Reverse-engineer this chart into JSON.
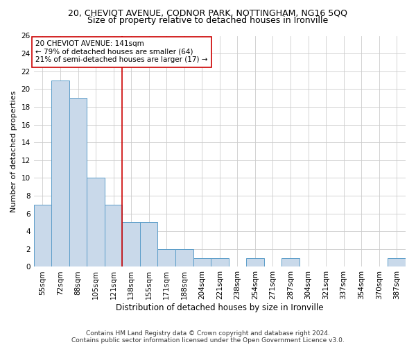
{
  "title_line1": "20, CHEVIOT AVENUE, CODNOR PARK, NOTTINGHAM, NG16 5QQ",
  "title_line2": "Size of property relative to detached houses in Ironville",
  "xlabel": "Distribution of detached houses by size in Ironville",
  "ylabel": "Number of detached properties",
  "categories": [
    "55sqm",
    "72sqm",
    "88sqm",
    "105sqm",
    "121sqm",
    "138sqm",
    "155sqm",
    "171sqm",
    "188sqm",
    "204sqm",
    "221sqm",
    "238sqm",
    "254sqm",
    "271sqm",
    "287sqm",
    "304sqm",
    "321sqm",
    "337sqm",
    "354sqm",
    "370sqm",
    "387sqm"
  ],
  "values": [
    7,
    21,
    19,
    10,
    7,
    5,
    5,
    2,
    2,
    1,
    1,
    0,
    1,
    0,
    1,
    0,
    0,
    0,
    0,
    0,
    1
  ],
  "bar_color": "#c9d9ea",
  "bar_edgecolor": "#5b9dc9",
  "annotation_box_text": "20 CHEVIOT AVENUE: 141sqm\n← 79% of detached houses are smaller (64)\n21% of semi-detached houses are larger (17) →",
  "annotation_box_color": "#ffffff",
  "annotation_box_edgecolor": "#cc0000",
  "vline_color": "#cc0000",
  "vline_x_index": 5,
  "ylim": [
    0,
    26
  ],
  "yticks": [
    0,
    2,
    4,
    6,
    8,
    10,
    12,
    14,
    16,
    18,
    20,
    22,
    24,
    26
  ],
  "grid_color": "#cccccc",
  "background_color": "#ffffff",
  "footer_line1": "Contains HM Land Registry data © Crown copyright and database right 2024.",
  "footer_line2": "Contains public sector information licensed under the Open Government Licence v3.0.",
  "title_fontsize": 9,
  "subtitle_fontsize": 9,
  "xlabel_fontsize": 8.5,
  "ylabel_fontsize": 8,
  "tick_fontsize": 7.5,
  "annotation_fontsize": 7.5,
  "footer_fontsize": 6.5
}
